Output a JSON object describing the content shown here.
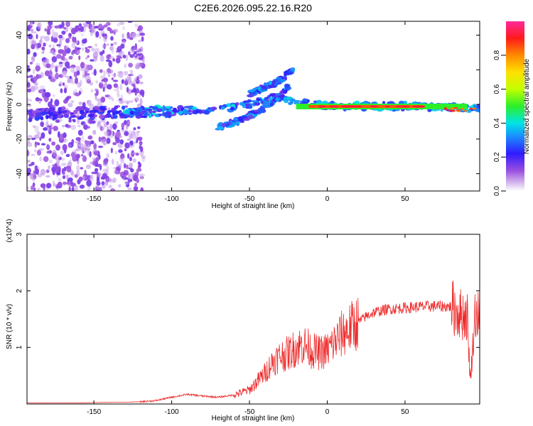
{
  "title": "C2E6.2026.095.22.16.R20",
  "chart_data": [
    {
      "type": "heatmap",
      "xlabel": "Height of straight line (km)",
      "ylabel": "Frequency (Hz)",
      "xlim": [
        -193,
        98
      ],
      "ylim": [
        -50,
        48
      ],
      "xticks": [
        -150,
        -100,
        -50,
        0,
        50
      ],
      "yticks": [
        -40,
        -20,
        0,
        20,
        40
      ],
      "colorbar": {
        "label": "Normalized spectral amplitude",
        "range": [
          0.0,
          1.0
        ],
        "ticks": [
          "0.0",
          "0.2",
          "0.4",
          "0.6",
          "0.8"
        ]
      },
      "features": [
        {
          "name": "main signal band",
          "x": [
            -193,
            -150,
            -100,
            -60,
            -35,
            -20,
            0,
            50,
            90,
            98
          ],
          "y": [
            -6,
            -5,
            -4,
            -2,
            4,
            1,
            -1,
            -1,
            -2,
            -3
          ]
        },
        {
          "name": "upper branch",
          "x": [
            -50,
            -40,
            -30,
            -22
          ],
          "y": [
            6,
            10,
            14,
            20
          ]
        },
        {
          "name": "lower branch",
          "x": [
            -70,
            -55,
            -42,
            -32,
            -25
          ],
          "y": [
            -13,
            -9,
            -3,
            4,
            10
          ]
        }
      ]
    },
    {
      "type": "line",
      "xlabel": "Height of straight line (km)",
      "ylabel": "SNR (10 * v/v)",
      "y_multiplier": "(x10^4)",
      "xlim": [
        -193,
        98
      ],
      "ylim": [
        0,
        3
      ],
      "xticks": [
        -150,
        -100,
        -50,
        0,
        50
      ],
      "yticks": [
        1,
        2,
        3
      ],
      "series": [
        {
          "name": "SNR",
          "color": "#ee2a2a",
          "x": [
            -193,
            -160,
            -140,
            -130,
            -120,
            -110,
            -100,
            -90,
            -80,
            -70,
            -60,
            -50,
            -45,
            -40,
            -35,
            -30,
            -25,
            -20,
            -15,
            -10,
            -5,
            0,
            5,
            10,
            15,
            20,
            25,
            30,
            40,
            50,
            60,
            70,
            80,
            85,
            90,
            92,
            95,
            98
          ],
          "y": [
            0.02,
            0.02,
            0.03,
            0.03,
            0.04,
            0.06,
            0.12,
            0.17,
            0.14,
            0.12,
            0.16,
            0.25,
            0.4,
            0.55,
            0.75,
            0.85,
            0.9,
            1.0,
            1.05,
            0.95,
            0.9,
            0.95,
            1.1,
            1.25,
            1.35,
            1.45,
            1.55,
            1.62,
            1.68,
            1.7,
            1.72,
            1.73,
            1.72,
            1.6,
            1.55,
            0.4,
            1.6,
            1.55
          ]
        }
      ]
    }
  ]
}
